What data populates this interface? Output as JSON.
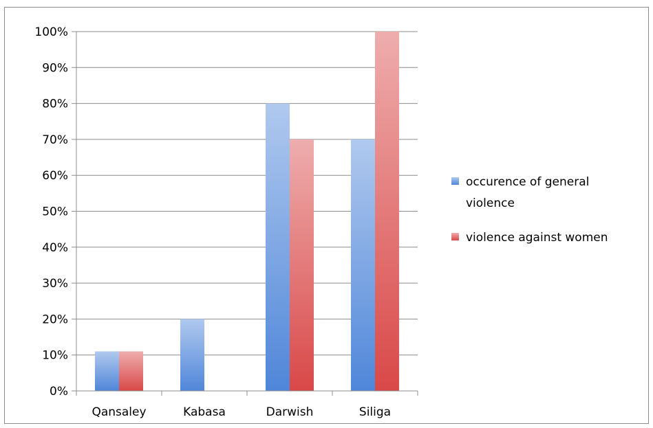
{
  "chart_data": {
    "type": "bar",
    "categories": [
      "Qansaley",
      "Kabasa",
      "Darwish",
      "Siliga"
    ],
    "series": [
      {
        "name": "occurence of general violence",
        "values": [
          11,
          20,
          80,
          70
        ],
        "color": "#4f86d9"
      },
      {
        "name": "violence against women",
        "values": [
          11,
          null,
          70,
          100
        ],
        "color": "#d94848"
      }
    ],
    "ylim": [
      0,
      100
    ],
    "yticks": [
      "0%",
      "10%",
      "20%",
      "30%",
      "40%",
      "50%",
      "60%",
      "70%",
      "80%",
      "90%",
      "100%"
    ],
    "grid": true,
    "legend_position": "right",
    "legend_lines": [
      [
        "occurence of general",
        "violence"
      ],
      [
        "violence against women"
      ]
    ]
  }
}
